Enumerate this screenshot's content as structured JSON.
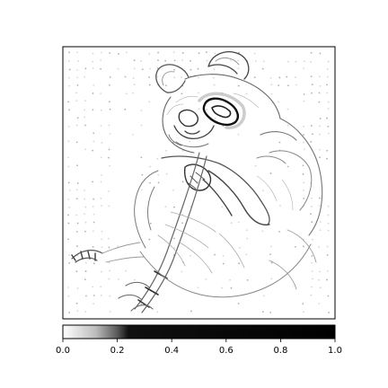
{
  "chart_data": {
    "type": "heatmap",
    "title": "",
    "xlabel": "",
    "ylabel": "",
    "image_subject": "grayscale saliency / edge map of a panda sitting, eating bamboo",
    "colormap": "gray_r",
    "colorbar": {
      "orientation": "horizontal",
      "placement": "bottom",
      "vmin": 0.0,
      "vmax": 1.0,
      "tick_values": [
        0.0,
        0.2,
        0.4,
        0.6,
        0.8,
        1.0
      ],
      "tick_labels": [
        "0.0",
        "0.2",
        "0.4",
        "0.6",
        "0.8",
        "1.0"
      ],
      "gradient_stops": [
        {
          "value": 0.0,
          "color": "#ffffff"
        },
        {
          "value": 0.12,
          "color": "#bdbdbd"
        },
        {
          "value": 0.2,
          "color": "#595959"
        },
        {
          "value": 0.24,
          "color": "#101010"
        },
        {
          "value": 1.0,
          "color": "#000000"
        }
      ]
    },
    "axes": {
      "ticks_visible": false,
      "grid": false
    }
  }
}
